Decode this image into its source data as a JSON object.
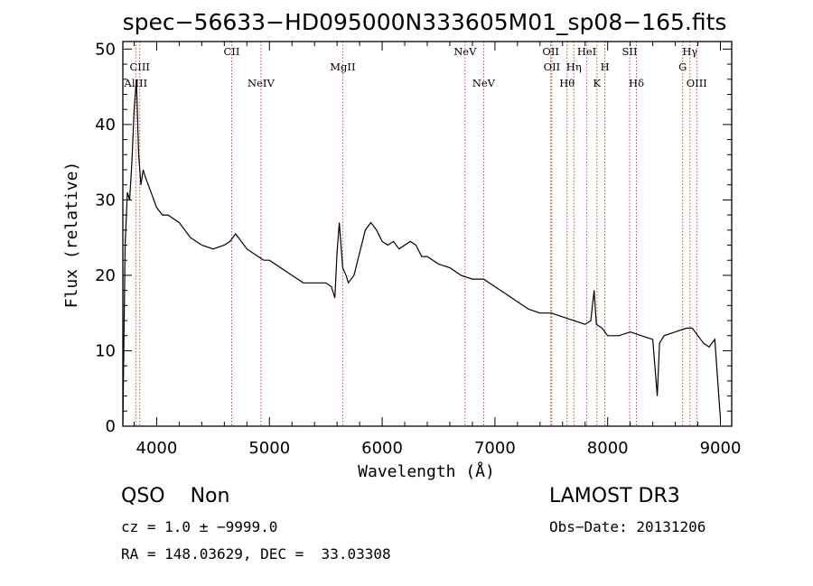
{
  "chart_data": {
    "type": "line",
    "title": "spec−56633−HD095000N333605M01_sp08−165.fits",
    "xlabel": "Wavelength (Å)",
    "ylabel": "Flux (relative)",
    "xlim": [
      3700,
      9100
    ],
    "ylim": [
      0,
      51
    ],
    "xticks": [
      "4000",
      "5000",
      "6000",
      "7000",
      "8000",
      "9000"
    ],
    "yticks": [
      "0",
      "10",
      "20",
      "30",
      "40",
      "50"
    ],
    "grid": false,
    "series": [
      {
        "x": [
          3700,
          3720,
          3740,
          3760,
          3780,
          3800,
          3820,
          3840,
          3860,
          3880,
          3900,
          3950,
          4000,
          4050,
          4100,
          4200,
          4300,
          4400,
          4500,
          4600,
          4650,
          4700,
          4750,
          4800,
          4850,
          4900,
          4950,
          5000,
          5100,
          5200,
          5300,
          5400,
          5500,
          5550,
          5580,
          5600,
          5620,
          5650,
          5680,
          5700,
          5750,
          5800,
          5850,
          5900,
          5950,
          6000,
          6050,
          6100,
          6150,
          6200,
          6250,
          6300,
          6350,
          6400,
          6450,
          6500,
          6600,
          6700,
          6800,
          6900,
          7000,
          7100,
          7200,
          7300,
          7400,
          7500,
          7600,
          7700,
          7800,
          7850,
          7880,
          7900,
          7950,
          8000,
          8100,
          8200,
          8300,
          8400,
          8440,
          8460,
          8500,
          8600,
          8700,
          8750,
          8800,
          8850,
          8900,
          8950,
          9000
        ],
        "y": [
          0,
          24,
          31,
          30,
          35,
          42,
          46,
          36,
          32,
          34,
          33,
          31,
          29,
          28,
          28,
          27,
          25,
          24,
          23.5,
          24,
          24.5,
          25.5,
          24.5,
          23.5,
          23,
          22.5,
          22,
          22,
          21,
          20,
          19,
          19,
          19,
          18.5,
          17,
          23,
          27,
          21,
          20,
          19,
          20,
          23,
          26,
          27,
          26,
          24.5,
          24,
          24.5,
          23.5,
          24,
          24.5,
          24,
          22.5,
          22.5,
          22,
          21.5,
          21,
          20,
          19.5,
          19.5,
          18.5,
          17.5,
          16.5,
          15.5,
          15,
          15,
          14.5,
          14,
          13.5,
          14,
          18,
          13.5,
          13,
          12,
          12,
          12.5,
          12,
          11.5,
          4,
          11,
          12,
          12.5,
          13,
          13,
          12,
          11,
          10.5,
          11.5,
          1
        ]
      }
    ],
    "emission_lines": [
      {
        "label": "AlIII",
        "x": 3815,
        "row": 3
      },
      {
        "label": "CIII",
        "x": 3850,
        "row": 2
      },
      {
        "label": "CII",
        "x": 4665,
        "row": 1
      },
      {
        "label": "NeIV",
        "x": 4925,
        "row": 3
      },
      {
        "label": "MgII",
        "x": 5650,
        "row": 2
      },
      {
        "label": "NeV",
        "x": 6735,
        "row": 1
      },
      {
        "label": "NeV",
        "x": 6900,
        "row": 3
      },
      {
        "label": "OII",
        "x": 7495,
        "row": 1
      },
      {
        "label": "OII",
        "x": 7505,
        "row": 2
      },
      {
        "label": "Hθ",
        "x": 7640,
        "row": 3
      },
      {
        "label": "Hη",
        "x": 7700,
        "row": 2
      },
      {
        "label": "HeI",
        "x": 7815,
        "row": 1
      },
      {
        "label": "K",
        "x": 7905,
        "row": 3
      },
      {
        "label": "H",
        "x": 7975,
        "row": 2
      },
      {
        "label": "SII",
        "x": 8195,
        "row": 1
      },
      {
        "label": "Hδ",
        "x": 8255,
        "row": 3
      },
      {
        "label": "G",
        "x": 8665,
        "row": 2
      },
      {
        "label": "Hγ",
        "x": 8730,
        "row": 1
      },
      {
        "label": "OIII",
        "x": 8790,
        "row": 3
      }
    ]
  },
  "info": {
    "class_label": "QSO    Non",
    "survey": "LAMOST DR3",
    "cz": "cz = 1.0 ± −9999.0",
    "obs_date": "Obs−Date: 20131206",
    "coords": "RA = 148.03629, DEC =  33.03308"
  }
}
